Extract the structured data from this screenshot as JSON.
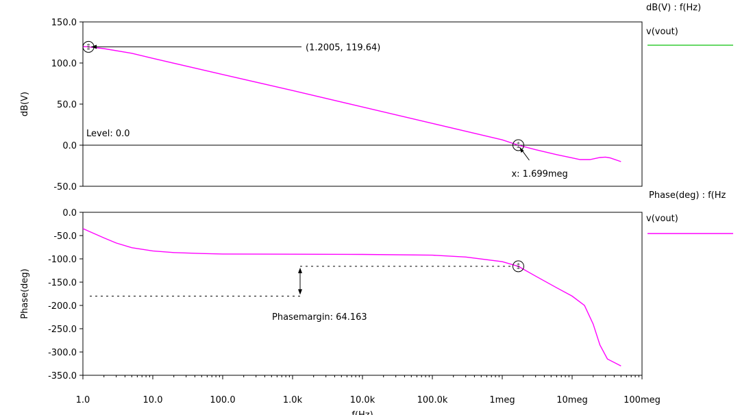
{
  "chart_data": {
    "type": "line",
    "x_scale": "log",
    "x_ticks": [
      {
        "value": 1,
        "label": "1.0"
      },
      {
        "value": 10,
        "label": "10.0"
      },
      {
        "value": 100,
        "label": "100.0"
      },
      {
        "value": 1000,
        "label": "1.0k"
      },
      {
        "value": 10000,
        "label": "10.0k"
      },
      {
        "value": 100000,
        "label": "100.0k"
      },
      {
        "value": 1000000,
        "label": "1meg"
      },
      {
        "value": 10000000,
        "label": "10meg"
      },
      {
        "value": 100000000,
        "label": "100meg"
      }
    ],
    "xlabel": "f(Hz)",
    "magnitude": {
      "ylabel": "dB(V)",
      "ylim": [
        -50,
        150
      ],
      "y_ticks": [
        {
          "value": 150,
          "label": "150.0"
        },
        {
          "value": 100,
          "label": "100.0"
        },
        {
          "value": 50,
          "label": "50.0"
        },
        {
          "value": 0,
          "label": "0.0"
        },
        {
          "value": -50,
          "label": "-50.0"
        }
      ],
      "legend_title": "dB(V) : f(Hz)",
      "series_name": "v(vout)",
      "legend_color": "#33cc33",
      "curve_color": "#ff00ff",
      "points": [
        [
          1.0,
          120.0
        ],
        [
          1.2,
          119.64
        ],
        [
          2,
          117.5
        ],
        [
          5,
          111.8
        ],
        [
          10,
          105.7
        ],
        [
          100,
          86.0
        ],
        [
          1000,
          66.5
        ],
        [
          10000,
          46.5
        ],
        [
          100000,
          26.5
        ],
        [
          1000000,
          6.5
        ],
        [
          1699000,
          0.0
        ],
        [
          3000000,
          -5.5
        ],
        [
          6000000,
          -11.5
        ],
        [
          10000000,
          -15.5
        ],
        [
          13000000,
          -17.5
        ],
        [
          18000000,
          -17.5
        ],
        [
          25000000,
          -15.0
        ],
        [
          30000000,
          -14.5
        ],
        [
          35000000,
          -15.5
        ],
        [
          50000000,
          -20.0
        ]
      ],
      "marker_start": {
        "x": 1.2005,
        "y": 119.64,
        "label": "(1.2005, 119.64)"
      },
      "level_label": "Level: 0.0",
      "level_value": 0.0,
      "crossing": {
        "x": 1699000,
        "y": 0.0,
        "label": "x: 1.699meg"
      }
    },
    "phase": {
      "ylabel": "Phase(deg)",
      "ylim": [
        -350,
        0
      ],
      "y_ticks": [
        {
          "value": 0,
          "label": "0.0"
        },
        {
          "value": -50,
          "label": "-50.0"
        },
        {
          "value": -100,
          "label": "-100.0"
        },
        {
          "value": -150,
          "label": "-150.0"
        },
        {
          "value": -200,
          "label": "-200.0"
        },
        {
          "value": -250,
          "label": "-250.0"
        },
        {
          "value": -300,
          "label": "-300.0"
        },
        {
          "value": -350,
          "label": "-350.0"
        }
      ],
      "legend_title": "Phase(deg) : f(Hz",
      "series_name": "v(vout)",
      "legend_color": "#ff00ff",
      "curve_color": "#ff00ff",
      "points": [
        [
          1,
          -35
        ],
        [
          2,
          -55
        ],
        [
          3,
          -66
        ],
        [
          5,
          -76
        ],
        [
          10,
          -83
        ],
        [
          20,
          -86.5
        ],
        [
          50,
          -88.5
        ],
        [
          100,
          -89.5
        ],
        [
          1000,
          -90
        ],
        [
          10000,
          -90.5
        ],
        [
          100000,
          -92
        ],
        [
          300000,
          -96
        ],
        [
          1000000,
          -106
        ],
        [
          1699000,
          -116
        ],
        [
          3000000,
          -137
        ],
        [
          6000000,
          -162
        ],
        [
          10000000,
          -180
        ],
        [
          15000000,
          -200
        ],
        [
          20000000,
          -240
        ],
        [
          25000000,
          -285
        ],
        [
          32000000,
          -315
        ],
        [
          50000000,
          -330
        ]
      ],
      "marker": {
        "x": 1699000,
        "y": -116
      },
      "ref_y": -180,
      "phase_margin_label": "Phasemargin: 64.163"
    }
  }
}
